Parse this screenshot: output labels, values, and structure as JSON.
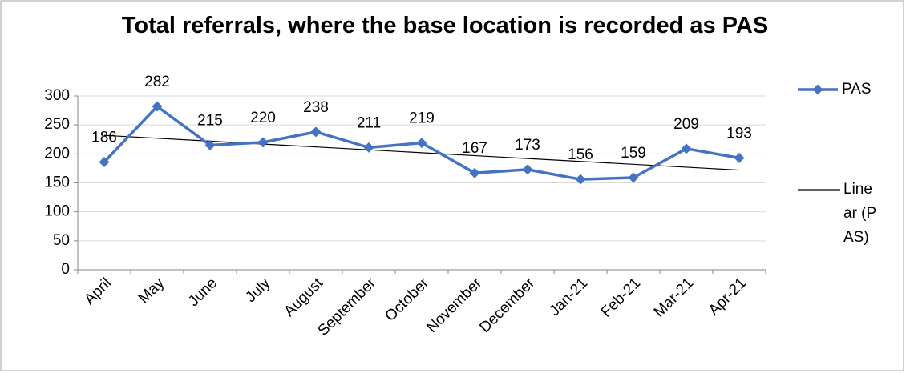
{
  "chart_data": {
    "type": "line",
    "title": "Total referrals, where the base location is recorded as PAS",
    "categories": [
      "April",
      "May",
      "June",
      "July",
      "August",
      "September",
      "October",
      "November",
      "December",
      "Jan-21",
      "Feb-21",
      "Mar-21",
      "Apr-21"
    ],
    "series": [
      {
        "name": "PAS",
        "color": "#4472c4",
        "values": [
          186,
          282,
          215,
          220,
          238,
          211,
          219,
          167,
          173,
          156,
          159,
          209,
          193
        ]
      }
    ],
    "trendline": {
      "name": "Linear (PAS)",
      "color": "#000000",
      "values": [
        232,
        172
      ]
    },
    "ylim": [
      0,
      300
    ],
    "yticks": [
      0,
      50,
      100,
      150,
      200,
      250,
      300
    ],
    "grid": true,
    "legend": "right"
  }
}
